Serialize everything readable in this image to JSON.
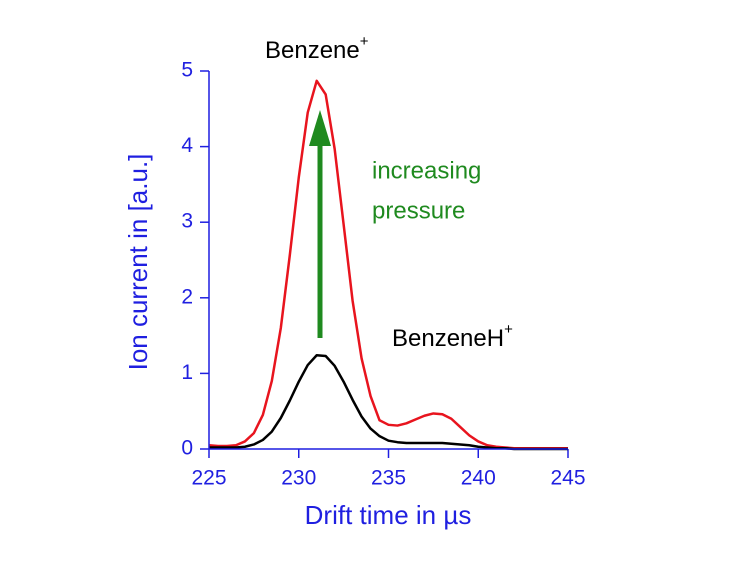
{
  "chart_data": {
    "type": "line",
    "x_label": "Drift time in µs",
    "y_label": "Ion current in [a.u.]",
    "x": [
      225,
      225.5,
      226,
      226.5,
      227,
      227.5,
      228,
      228.5,
      229,
      229.5,
      230,
      230.5,
      231,
      231.5,
      232,
      232.5,
      233,
      233.5,
      234,
      234.5,
      235,
      235.5,
      236,
      236.5,
      237,
      237.5,
      238,
      238.5,
      239,
      239.5,
      240,
      240.5,
      241,
      241.5,
      242,
      242.5,
      243,
      243.5,
      244,
      244.5,
      245
    ],
    "series": [
      {
        "color": "#e8141e",
        "values": [
          0.05,
          0.04,
          0.04,
          0.05,
          0.1,
          0.21,
          0.45,
          0.9,
          1.6,
          2.56,
          3.59,
          4.45,
          4.87,
          4.69,
          3.97,
          2.97,
          1.96,
          1.2,
          0.7,
          0.38,
          0.32,
          0.31,
          0.34,
          0.39,
          0.44,
          0.47,
          0.46,
          0.4,
          0.29,
          0.18,
          0.1,
          0.05,
          0.03,
          0.02,
          0.01,
          0.01,
          0.01,
          0.01,
          0.01,
          0.01,
          0.01
        ]
      },
      {
        "color": "#000000",
        "values": [
          0.02,
          0.02,
          0.02,
          0.02,
          0.03,
          0.06,
          0.12,
          0.23,
          0.41,
          0.64,
          0.89,
          1.11,
          1.24,
          1.23,
          1.1,
          0.89,
          0.65,
          0.43,
          0.27,
          0.17,
          0.11,
          0.09,
          0.08,
          0.08,
          0.08,
          0.08,
          0.08,
          0.07,
          0.06,
          0.05,
          0.03,
          0.02,
          0.01,
          0.01,
          0,
          0,
          0,
          0,
          0,
          0,
          0
        ]
      }
    ],
    "xlim": [
      225,
      245
    ],
    "ylim": [
      0,
      5
    ],
    "xticks": [
      225,
      230,
      235,
      240,
      245
    ],
    "yticks": [
      0,
      1,
      2,
      3,
      4,
      5
    ],
    "axis_color": "#1f1fe0",
    "annotations": [
      {
        "text": "Benzene",
        "sup": "+"
      },
      {
        "text": "BenzeneH",
        "sup": "+"
      },
      {
        "lines": [
          "increasing",
          "pressure"
        ],
        "color": "#1f8a1f"
      }
    ]
  }
}
